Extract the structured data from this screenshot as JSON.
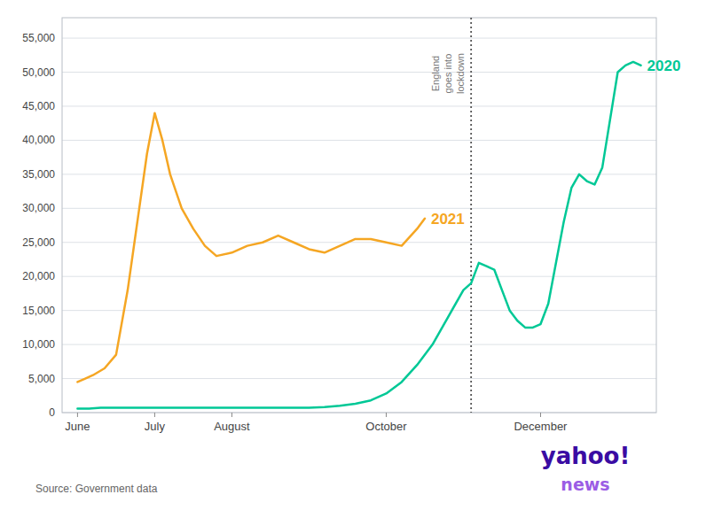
{
  "chart_data": {
    "type": "line",
    "series": [
      {
        "name": "2020",
        "color": "#00c896",
        "x": [
          0.0,
          0.15,
          0.3,
          0.5,
          0.7,
          0.9,
          1.0,
          1.1,
          1.2,
          1.35,
          1.5,
          1.65,
          1.8,
          2.0,
          2.2,
          2.4,
          2.6,
          2.8,
          3.0,
          3.2,
          3.4,
          3.6,
          3.8,
          4.0,
          4.2,
          4.4,
          4.6,
          4.8,
          5.0,
          5.1,
          5.2,
          5.3,
          5.4,
          5.5,
          5.6,
          5.7,
          5.8,
          5.9,
          6.0,
          6.1,
          6.2,
          6.3,
          6.4,
          6.5,
          6.6,
          6.7,
          6.8,
          6.9,
          7.0,
          7.1,
          7.2,
          7.3
        ],
        "values": [
          600,
          600,
          700,
          700,
          700,
          700,
          700,
          700,
          700,
          700,
          700,
          700,
          700,
          700,
          700,
          700,
          700,
          700,
          700,
          800,
          1000,
          1300,
          1800,
          2800,
          4500,
          7000,
          10000,
          14000,
          18000,
          19000,
          22000,
          21500,
          21000,
          18000,
          15000,
          13500,
          12500,
          12500,
          13000,
          16000,
          22000,
          28000,
          33000,
          35000,
          34000,
          33500,
          36000,
          43000,
          50000,
          51000,
          51500,
          51000
        ]
      },
      {
        "name": "2021",
        "color": "#f5a623",
        "x": [
          0.0,
          0.1,
          0.2,
          0.35,
          0.5,
          0.65,
          0.8,
          0.9,
          1.0,
          1.1,
          1.2,
          1.35,
          1.5,
          1.65,
          1.8,
          2.0,
          2.2,
          2.4,
          2.6,
          2.8,
          3.0,
          3.2,
          3.4,
          3.6,
          3.8,
          4.0,
          4.2,
          4.4,
          4.5
        ],
        "values": [
          4500,
          5000,
          5500,
          6500,
          8500,
          18000,
          30000,
          38000,
          44000,
          40000,
          35000,
          30000,
          27000,
          24500,
          23000,
          23500,
          24500,
          25000,
          26000,
          25000,
          24000,
          23500,
          24500,
          25500,
          25500,
          25000,
          24500,
          27000,
          28500
        ]
      }
    ],
    "xlim": [
      -0.2,
      7.5
    ],
    "xticks": [
      {
        "value": 0,
        "label": "June"
      },
      {
        "value": 1.0,
        "label": "July"
      },
      {
        "value": 2.0,
        "label": "August"
      },
      {
        "value": 4.0,
        "label": "October"
      },
      {
        "value": 6.0,
        "label": "December"
      }
    ],
    "ylim": [
      0,
      58000
    ],
    "yticks": [
      0,
      {
        "value": 5000,
        "label": "5,000"
      },
      {
        "value": 10000,
        "label": "10,000"
      },
      {
        "value": 15000,
        "label": "15,000"
      },
      {
        "value": 20000,
        "label": "20,000"
      },
      {
        "value": 25000,
        "label": "25,000"
      },
      {
        "value": 30000,
        "label": "30,000"
      },
      {
        "value": 35000,
        "label": "35,000"
      },
      {
        "value": 40000,
        "label": "40,000"
      },
      {
        "value": 45000,
        "label": "45,000"
      },
      {
        "value": 50000,
        "label": "50,000"
      },
      {
        "value": 55000,
        "label": "55,000"
      }
    ],
    "grid": true,
    "annotations": [
      {
        "text": "England\ngoes into\nlockdown",
        "x": 5.1,
        "color": "#555555"
      }
    ],
    "source": "Source: Government data",
    "logo": [
      {
        "text": "yahoo!",
        "color": "#3a0ca3"
      },
      {
        "text": "news",
        "color": "#9b5de5"
      }
    ]
  }
}
